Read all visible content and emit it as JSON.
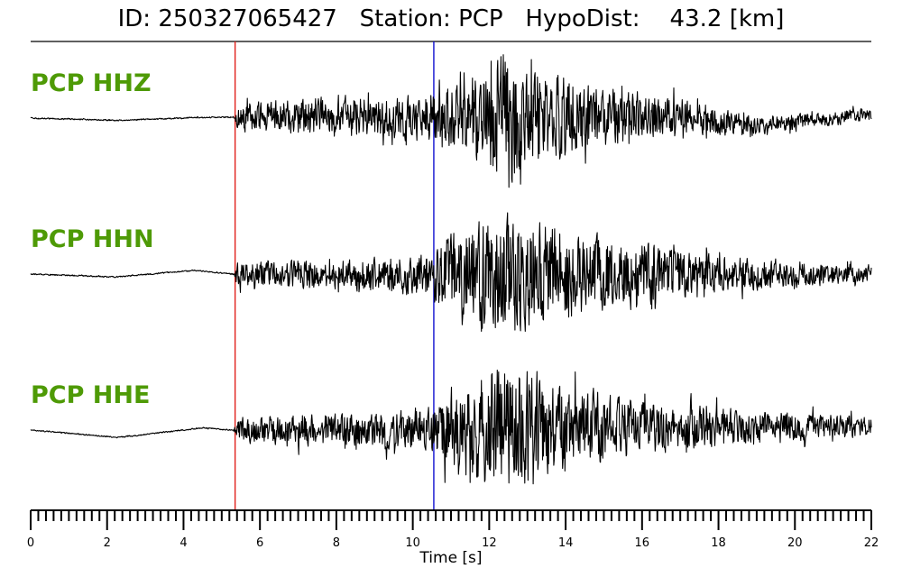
{
  "title": "ID: 250327065427   Station: PCP   HypoDist:    43.2 [km]",
  "colors": {
    "label": "#4e9a06",
    "trace": "#000000",
    "p_pick": "#e0201b",
    "s_pick": "#1010d0"
  },
  "chart_data": {
    "type": "line",
    "title": "ID: 250327065427   Station: PCP   HypoDist:    43.2 [km]",
    "xlabel": "Time [s]",
    "xlim": [
      0,
      22
    ],
    "x_ticks": [
      0,
      2,
      4,
      6,
      8,
      10,
      12,
      14,
      16,
      18,
      20,
      22
    ],
    "minor_tick_step": 0.2,
    "picks": [
      {
        "phase": "P",
        "time": 5.35,
        "color": "#e0201b"
      },
      {
        "phase": "S",
        "time": 10.55,
        "color": "#1010d0"
      }
    ],
    "series": [
      {
        "name": "PCP HHZ",
        "envelope": [
          {
            "t": 0.0,
            "amp": 0.01
          },
          {
            "t": 5.3,
            "amp": 0.01
          },
          {
            "t": 5.45,
            "amp": 0.22
          },
          {
            "t": 7.5,
            "amp": 0.3
          },
          {
            "t": 9.5,
            "amp": 0.34
          },
          {
            "t": 10.5,
            "amp": 0.38
          },
          {
            "t": 11.5,
            "amp": 0.62
          },
          {
            "t": 12.4,
            "amp": 1.0
          },
          {
            "t": 13.5,
            "amp": 0.72
          },
          {
            "t": 15.5,
            "amp": 0.42
          },
          {
            "t": 17.5,
            "amp": 0.26
          },
          {
            "t": 19.0,
            "amp": 0.14
          },
          {
            "t": 22.0,
            "amp": 0.1
          }
        ],
        "baseline_wander": [
          {
            "t": 0.0,
            "v": 0.0
          },
          {
            "t": 2.3,
            "v": -0.03
          },
          {
            "t": 4.5,
            "v": 0.01
          },
          {
            "t": 17.0,
            "v": 0.03
          },
          {
            "t": 19.0,
            "v": -0.1
          },
          {
            "t": 22.0,
            "v": 0.05
          }
        ]
      },
      {
        "name": "PCP HHN",
        "envelope": [
          {
            "t": 0.0,
            "amp": 0.01
          },
          {
            "t": 5.3,
            "amp": 0.01
          },
          {
            "t": 5.45,
            "amp": 0.2
          },
          {
            "t": 8.0,
            "amp": 0.24
          },
          {
            "t": 10.3,
            "amp": 0.34
          },
          {
            "t": 11.0,
            "amp": 0.62
          },
          {
            "t": 12.2,
            "amp": 1.0
          },
          {
            "t": 13.8,
            "amp": 0.78
          },
          {
            "t": 15.5,
            "amp": 0.52
          },
          {
            "t": 18.0,
            "amp": 0.28
          },
          {
            "t": 22.0,
            "amp": 0.14
          }
        ],
        "baseline_wander": [
          {
            "t": 0.0,
            "v": 0.0
          },
          {
            "t": 2.2,
            "v": -0.04
          },
          {
            "t": 4.3,
            "v": 0.05
          },
          {
            "t": 5.3,
            "v": 0.0
          },
          {
            "t": 22.0,
            "v": 0.0
          }
        ]
      },
      {
        "name": "PCP HHE",
        "envelope": [
          {
            "t": 0.0,
            "amp": 0.01
          },
          {
            "t": 5.3,
            "amp": 0.01
          },
          {
            "t": 5.45,
            "amp": 0.2
          },
          {
            "t": 8.5,
            "amp": 0.28
          },
          {
            "t": 10.5,
            "amp": 0.34
          },
          {
            "t": 11.2,
            "amp": 0.75
          },
          {
            "t": 12.4,
            "amp": 1.0
          },
          {
            "t": 13.8,
            "amp": 0.72
          },
          {
            "t": 16.0,
            "amp": 0.4
          },
          {
            "t": 19.0,
            "amp": 0.24
          },
          {
            "t": 22.0,
            "amp": 0.16
          }
        ],
        "baseline_wander": [
          {
            "t": 0.0,
            "v": 0.0
          },
          {
            "t": 2.3,
            "v": -0.1
          },
          {
            "t": 4.5,
            "v": 0.03
          },
          {
            "t": 5.3,
            "v": 0.0
          },
          {
            "t": 22.0,
            "v": 0.05
          }
        ]
      }
    ]
  }
}
